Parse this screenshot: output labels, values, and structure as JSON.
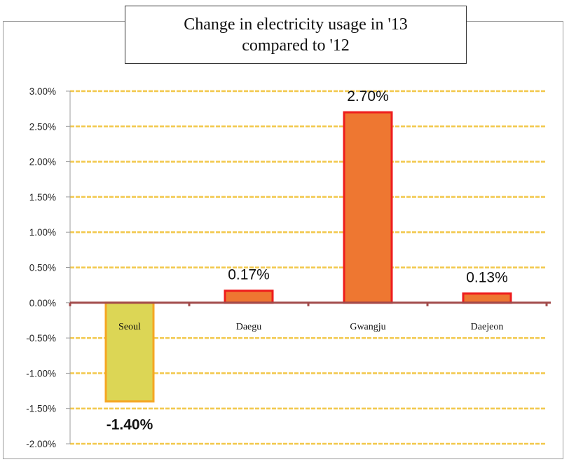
{
  "colors": {
    "grid": "#f2c84b",
    "axis": "#a14a4a",
    "positive_fill": "#ee7731",
    "positive_stroke": "#ee1c1c",
    "negative_fill": "#dcd655",
    "negative_stroke": "#f5a623"
  },
  "chart_data": {
    "type": "bar",
    "title_lines": [
      "Change in electricity usage in '13",
      "compared to '12"
    ],
    "categories": [
      "Seoul",
      "Daegu",
      "Gwangju",
      "Daejeon"
    ],
    "values": [
      -1.4,
      0.17,
      2.7,
      0.13
    ],
    "value_unit": "%",
    "data_labels": [
      "-1.40%",
      "0.17%",
      "2.70%",
      "0.13%"
    ],
    "y_ticks": [
      "3.00%",
      "2.50%",
      "2.00%",
      "1.50%",
      "1.00%",
      "0.50%",
      "0.00%",
      "-0.50%",
      "-1.00%",
      "-1.50%",
      "-2.00%"
    ],
    "ylim": [
      -2.0,
      3.0
    ],
    "xlabel": "",
    "ylabel": "",
    "grid": true,
    "legend": false
  }
}
